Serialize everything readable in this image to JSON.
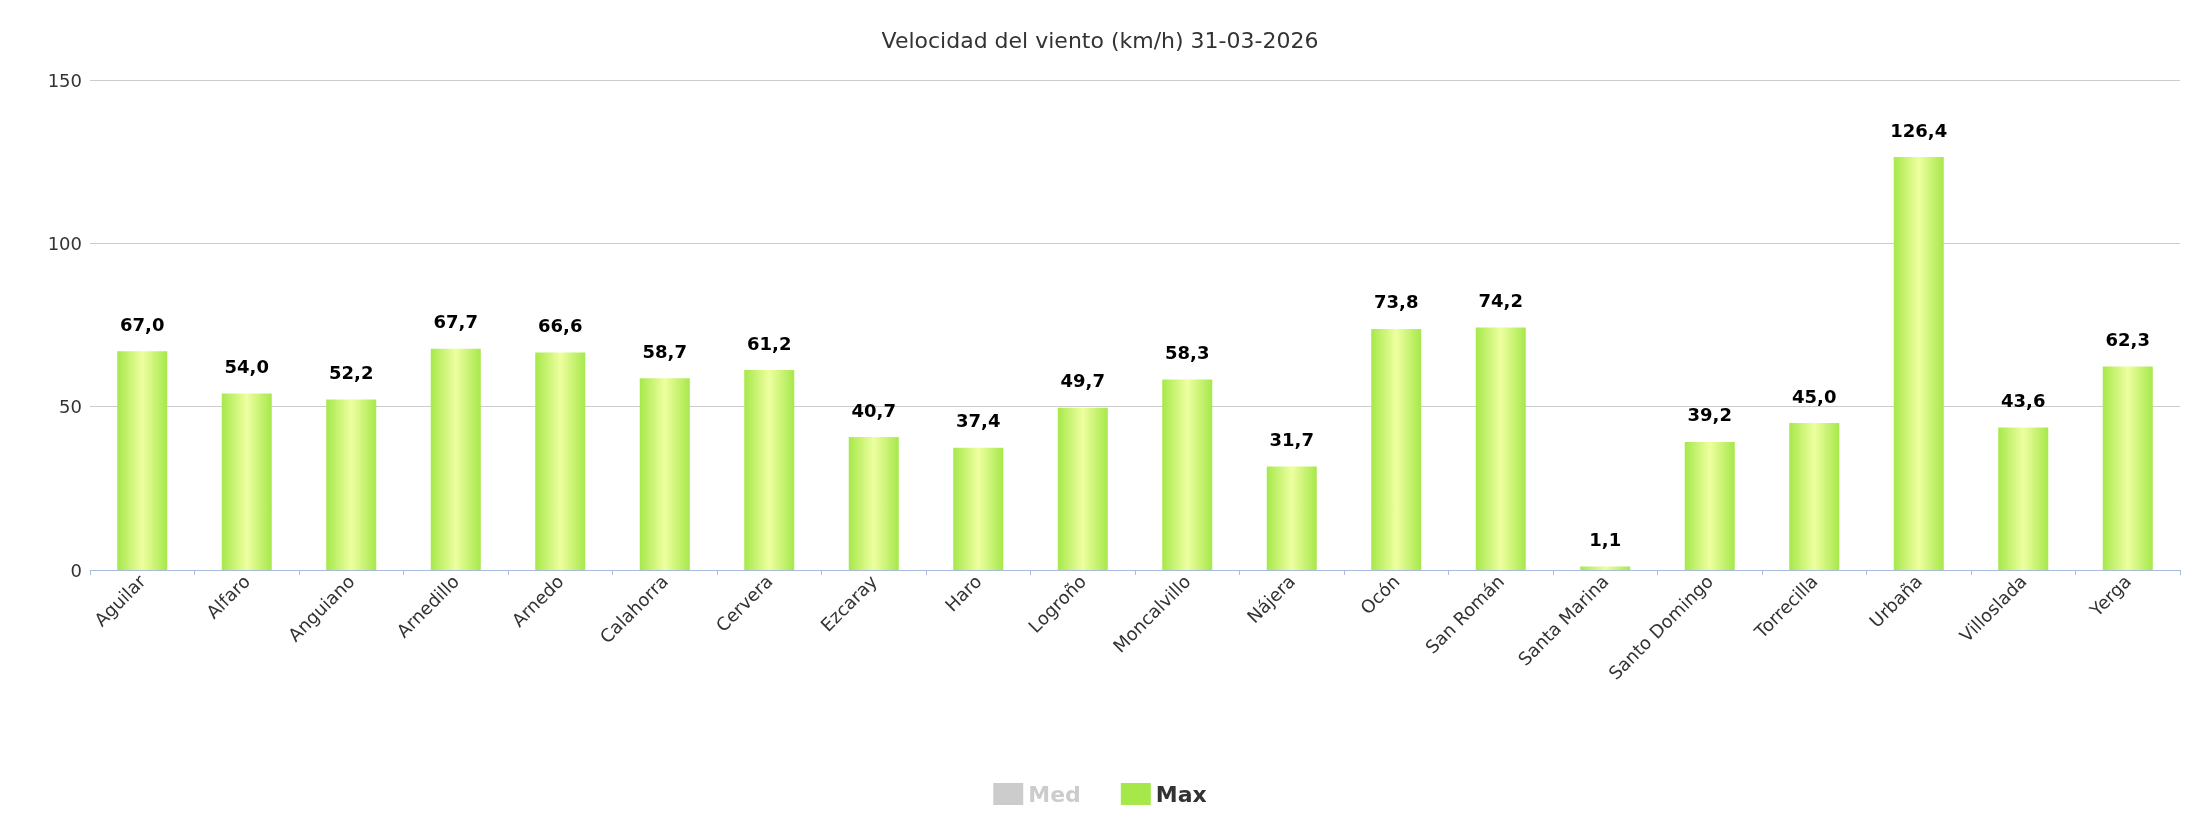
{
  "chart_data": {
    "type": "bar",
    "title": "Velocidad del viento (km/h) 31-03-2026",
    "categories": [
      "Aguilar",
      "Alfaro",
      "Anguiano",
      "Arnedillo",
      "Arnedo",
      "Calahorra",
      "Cervera",
      "Ezcaray",
      "Haro",
      "Logroño",
      "Moncalvillo",
      "Nájera",
      "Ocón",
      "San Román",
      "Santa Marina",
      "Santo Domingo",
      "Torrecilla",
      "Urbaña",
      "Villoslada",
      "Yerga"
    ],
    "series": [
      {
        "name": "Med",
        "color": "#cccccc",
        "values": [
          null,
          null,
          null,
          null,
          null,
          null,
          null,
          null,
          null,
          null,
          null,
          null,
          null,
          null,
          null,
          null,
          null,
          null,
          null,
          null
        ]
      },
      {
        "name": "Max",
        "color": "#a6e84a",
        "values": [
          67.0,
          54.0,
          52.2,
          67.7,
          66.6,
          58.7,
          61.2,
          40.7,
          37.4,
          49.7,
          58.3,
          31.7,
          73.8,
          74.2,
          1.1,
          39.2,
          45.0,
          126.4,
          43.6,
          62.3
        ],
        "value_labels": [
          "67,0",
          "54,0",
          "52,2",
          "67,7",
          "66,6",
          "58,7",
          "61,2",
          "40,7",
          "37,4",
          "49,7",
          "58,3",
          "31,7",
          "73,8",
          "74,2",
          "1,1",
          "39,2",
          "45,0",
          "126,4",
          "43,6",
          "62,3"
        ]
      }
    ],
    "ylim": [
      0,
      150
    ],
    "yticks": [
      0,
      50,
      100,
      150
    ],
    "grid": "y",
    "legend": "bottom"
  }
}
